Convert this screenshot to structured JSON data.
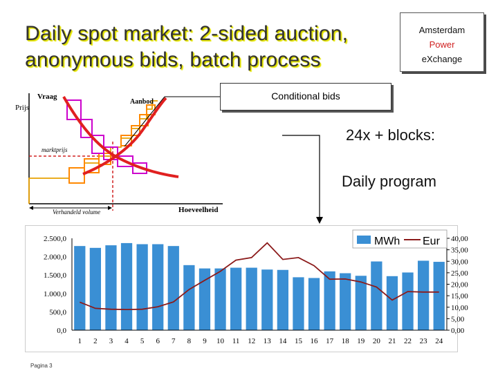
{
  "slide": {
    "title_line1": "Daily spot market: 2-sided auction,",
    "title_line2": "anonymous bids, batch process",
    "logo": {
      "line1": "Amsterdam",
      "line2": "Power",
      "line3": "eXchange"
    },
    "footer": "Pagina 3",
    "colors": {
      "title": "#333333",
      "title_shadow": "#e0e000",
      "power": "#d02020"
    }
  },
  "diagram": {
    "label_prijs": "Prijs",
    "label_vraag": "Vraag",
    "label_aanbod": "Aanbod",
    "label_marktprijs": "marktprijs",
    "label_verhandeld": "Verhandeld volume",
    "label_hoeveelheid": "Hoeveelheid",
    "conditional_bids": "Conditional bids",
    "blocks_label": "24x + blocks:",
    "daily_program": "Daily program",
    "colors": {
      "demand_curve": "#e02020",
      "supply_curve": "#e02020",
      "demand_boxes": "#cc00cc",
      "supply_boxes": "#ff8800"
    }
  },
  "chart_data": {
    "type": "bar",
    "categories": [
      "1",
      "2",
      "3",
      "4",
      "5",
      "6",
      "7",
      "8",
      "9",
      "10",
      "11",
      "12",
      "13",
      "14",
      "15",
      "16",
      "17",
      "18",
      "19",
      "20",
      "21",
      "22",
      "23",
      "24"
    ],
    "series": [
      {
        "name": "MWh",
        "type": "bar",
        "axis": "left",
        "color": "#3a8fd4",
        "values": [
          2290,
          2240,
          2310,
          2370,
          2340,
          2340,
          2290,
          1770,
          1680,
          1680,
          1700,
          1700,
          1650,
          1640,
          1440,
          1420,
          1600,
          1550,
          1480,
          1870,
          1470,
          1570,
          1890,
          1860
        ]
      },
      {
        "name": "Eur",
        "type": "line",
        "axis": "right",
        "color": "#8b1a1a",
        "values": [
          12.2,
          9.5,
          9.1,
          9.0,
          9.1,
          10.2,
          12.3,
          17.7,
          21.7,
          25.6,
          30.5,
          31.6,
          38.0,
          30.8,
          31.6,
          28.1,
          22.2,
          22.3,
          21.0,
          18.8,
          13.1,
          16.8,
          16.6,
          16.6
        ]
      }
    ],
    "ylim_left": [
      0,
      2500
    ],
    "yticks_left": [
      "0,0",
      "500,0",
      "1.000,0",
      "1.500,0",
      "2.000,0",
      "2.500,0"
    ],
    "ylim_right": [
      0,
      40
    ],
    "yticks_right": [
      "0,00",
      "5,00",
      "10,00",
      "15,00",
      "20,00",
      "25,00",
      "30,00",
      "35,00",
      "40,00"
    ],
    "legend_position": "top-right",
    "grid": false
  }
}
